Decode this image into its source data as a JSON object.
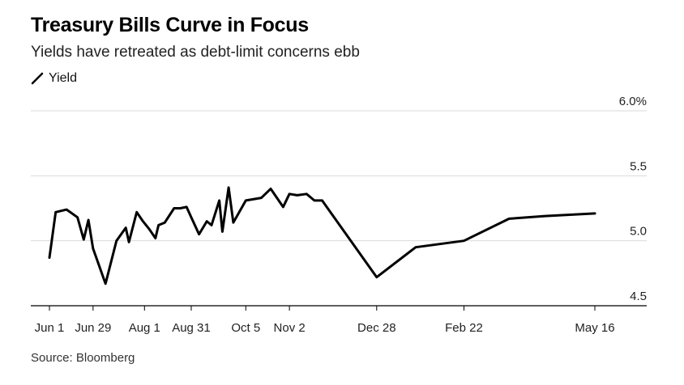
{
  "title": "Treasury Bills Curve in Focus",
  "subtitle": "Yields have retreated as debt-limit concerns ebb",
  "legend": {
    "label": "Yield"
  },
  "source": "Source: Bloomberg",
  "colors": {
    "line": "#000000",
    "grid": "#d9d9d9",
    "axis": "#000000",
    "text": "#222222"
  },
  "chart_data": {
    "type": "line",
    "title": "Treasury Bills Curve in Focus",
    "subtitle": "Yields have retreated as debt-limit concerns ebb",
    "xlabel": "",
    "ylabel": "",
    "ylim": [
      4.5,
      6.0
    ],
    "y_ticks": [
      4.5,
      5.0,
      5.5,
      6.0
    ],
    "y_tick_labels": [
      "4.5",
      "5.0",
      "5.5",
      "6.0%"
    ],
    "x_ticks": [
      "Jun 1",
      "Jun 29",
      "Aug 1",
      "Aug 31",
      "Oct 5",
      "Nov 2",
      "Dec 28",
      "Feb 22",
      "May 16"
    ],
    "grid": true,
    "legend_position": "top-left",
    "series": [
      {
        "name": "Yield",
        "x": [
          "Jun 1",
          "Jun 5",
          "Jun 12",
          "Jun 19",
          "Jun 23",
          "Jun 26",
          "Jun 29",
          "Jul 7",
          "Jul 14",
          "Jul 20",
          "Jul 22",
          "Jul 27",
          "Jul 31",
          "Aug 4",
          "Aug 8",
          "Aug 10",
          "Aug 14",
          "Aug 20",
          "Aug 24",
          "Aug 28",
          "Aug 31",
          "Sep 5",
          "Sep 10",
          "Sep 13",
          "Sep 18",
          "Sep 20",
          "Sep 24",
          "Sep 27",
          "Oct 5",
          "Oct 15",
          "Oct 21",
          "Oct 29",
          "Nov 2",
          "Nov 7",
          "Nov 13",
          "Nov 18",
          "Nov 23",
          "Dec 28",
          "Jan 22",
          "Feb 22",
          "Mar 22",
          "Apr 14",
          "May 16"
        ],
        "values": [
          4.87,
          5.22,
          5.24,
          5.18,
          5.01,
          5.16,
          4.94,
          4.67,
          5.0,
          5.1,
          4.99,
          5.22,
          5.15,
          5.09,
          5.02,
          5.12,
          5.14,
          5.25,
          5.25,
          5.26,
          5.18,
          5.05,
          5.15,
          5.12,
          5.31,
          5.07,
          5.41,
          5.14,
          5.31,
          5.33,
          5.4,
          5.26,
          5.36,
          5.35,
          5.36,
          5.31,
          5.31,
          4.72,
          4.95,
          5.0,
          5.17,
          5.19,
          5.21
        ]
      }
    ]
  }
}
